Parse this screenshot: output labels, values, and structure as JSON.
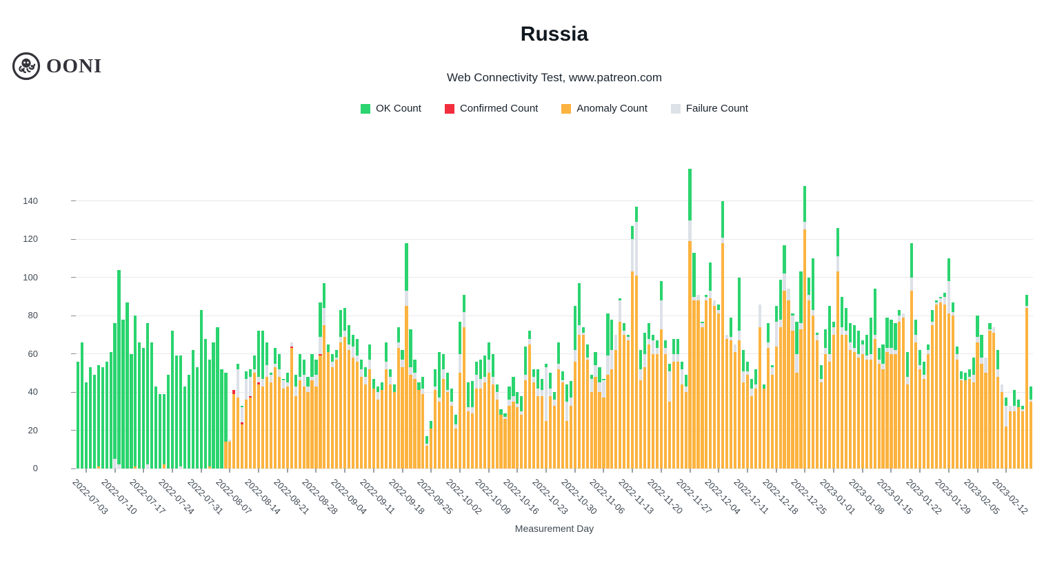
{
  "brand": {
    "logo_text": "OONI"
  },
  "chart": {
    "title": "Russia",
    "subtitle": "Web Connectivity Test, www.patreon.com",
    "xlabel": "Measurement Day"
  },
  "legend": {
    "items": [
      {
        "label": "OK Count",
        "color": "#2ad46e"
      },
      {
        "label": "Confirmed Count",
        "color": "#f22e3e"
      },
      {
        "label": "Anomaly Count",
        "color": "#fcb33f"
      },
      {
        "label": "Failure Count",
        "color": "#dde1e8"
      }
    ]
  },
  "chart_data": {
    "type": "bar",
    "stacked": true,
    "title": "Russia",
    "subtitle": "Web Connectivity Test, www.patreon.com",
    "xlabel": "Measurement Day",
    "ylabel": "",
    "ylim": [
      0,
      158
    ],
    "grid": true,
    "legend_position": "top-center",
    "start_date": "2022-07-01",
    "y_ticks": [
      0,
      20,
      40,
      60,
      80,
      100,
      120,
      140
    ],
    "x_tick_labels": [
      "2022-07-03",
      "2022-07-10",
      "2022-07-17",
      "2022-07-24",
      "2022-07-31",
      "2022-08-07",
      "2022-08-14",
      "2022-08-21",
      "2022-08-28",
      "2022-09-04",
      "2022-09-11",
      "2022-09-18",
      "2022-09-25",
      "2022-10-02",
      "2022-10-09",
      "2022-10-16",
      "2022-10-23",
      "2022-10-30",
      "2022-11-06",
      "2022-11-13",
      "2022-11-20",
      "2022-11-27",
      "2022-12-04",
      "2022-12-11",
      "2022-12-18",
      "2022-12-25",
      "2023-01-01",
      "2023-01-08",
      "2023-01-15",
      "2023-01-22",
      "2023-01-29",
      "2023-02-05",
      "2023-02-12"
    ],
    "x_tick_first_index": 2,
    "x_tick_step": 7,
    "series": [
      {
        "name": "OK Count",
        "color": "#2ad46e",
        "values": [
          56,
          66,
          45,
          53,
          49,
          53,
          53,
          56,
          61,
          71,
          102,
          78,
          87,
          60,
          79,
          66,
          63,
          74,
          66,
          43,
          39,
          37,
          49,
          72,
          59,
          58,
          43,
          49,
          62,
          53,
          83,
          68,
          56,
          66,
          74,
          52,
          36,
          0,
          0,
          3,
          1,
          4,
          4,
          7,
          24,
          25,
          12,
          1,
          8,
          8,
          1,
          5,
          0,
          6,
          12,
          8,
          5,
          12,
          8,
          18,
          13,
          4,
          4,
          4,
          14,
          12,
          10,
          6,
          9,
          5,
          5,
          8,
          5,
          3,
          4,
          10,
          4,
          4,
          8,
          5,
          25,
          20,
          7,
          4,
          6,
          4,
          4,
          9,
          24,
          8,
          9,
          7,
          5,
          17,
          9,
          13,
          14,
          7,
          10,
          11,
          9,
          12,
          4,
          3,
          2,
          7,
          10,
          6,
          8,
          15,
          4,
          4,
          10,
          6,
          2,
          8,
          4,
          11,
          5,
          9,
          9,
          23,
          22,
          3,
          7,
          2,
          7,
          8,
          1,
          22,
          16,
          0,
          1,
          4,
          1,
          7,
          8,
          10,
          11,
          8,
          3,
          4,
          10,
          4,
          4,
          8,
          8,
          4,
          6,
          27,
          23,
          0,
          1,
          1,
          15,
          0,
          3,
          19,
          0,
          10,
          0,
          28,
          11,
          5,
          5,
          8,
          0,
          2,
          10,
          1,
          8,
          21,
          15,
          0,
          1,
          17,
          27,
          19,
          9,
          27,
          1,
          7,
          10,
          25,
          3,
          15,
          16,
          12,
          10,
          12,
          12,
          2,
          11,
          19,
          24,
          6,
          10,
          16,
          15,
          14,
          3,
          0,
          13,
          18,
          8,
          8,
          7,
          3,
          6,
          1,
          1,
          2,
          12,
          5,
          4,
          4,
          4,
          4,
          9,
          11,
          12,
          0,
          3,
          0,
          10,
          0,
          4,
          0,
          8,
          4,
          2,
          6,
          7
        ]
      },
      {
        "name": "Confirmed Count",
        "color": "#f22e3e",
        "values": [
          0,
          0,
          0,
          0,
          0,
          0,
          0,
          0,
          0,
          0,
          0,
          0,
          0,
          0,
          0,
          0,
          0,
          0,
          0,
          0,
          0,
          0,
          0,
          0,
          0,
          0,
          0,
          0,
          0,
          0,
          0,
          0,
          0,
          0,
          0,
          0,
          0,
          0,
          2,
          0,
          1,
          0,
          1,
          0,
          1,
          0,
          0,
          0,
          0,
          0,
          0,
          0,
          1,
          0,
          0,
          0,
          0,
          0,
          0,
          1,
          0,
          0,
          0,
          0,
          0,
          0,
          0,
          0,
          0,
          0,
          0,
          0,
          0,
          0,
          0,
          0,
          0,
          0,
          0,
          0,
          0,
          0,
          0,
          0,
          0,
          0,
          0,
          0,
          0,
          0,
          0,
          0,
          0,
          0,
          0,
          0,
          0,
          0,
          0,
          0,
          0,
          0,
          0,
          0,
          0,
          0,
          0,
          0,
          0,
          0,
          0,
          0,
          0,
          0,
          0,
          0,
          0,
          0,
          0,
          0,
          0,
          0,
          0,
          0,
          0,
          0,
          0,
          0,
          0,
          0,
          0,
          0,
          0,
          0,
          0,
          0,
          0,
          0,
          0,
          0,
          0,
          0,
          0,
          0,
          0,
          0,
          0,
          0,
          0,
          0,
          0,
          0,
          0,
          0,
          0,
          0,
          0,
          0,
          0,
          0,
          0,
          0,
          0,
          0,
          0,
          0,
          0,
          0,
          0,
          0,
          0,
          0,
          0,
          0,
          0,
          0,
          0,
          0,
          0,
          0,
          0,
          0,
          0,
          0,
          0,
          0,
          0,
          0,
          0,
          0,
          0,
          0,
          0,
          0,
          0,
          0,
          0,
          0,
          0,
          0,
          0,
          0,
          0,
          0,
          0,
          0,
          0,
          0,
          0,
          0,
          0,
          0,
          0,
          0,
          0,
          0,
          0,
          0,
          0,
          0,
          0,
          0,
          0,
          0,
          0,
          0,
          0,
          0,
          0,
          0,
          0,
          0,
          0
        ]
      },
      {
        "name": "Anomaly Count",
        "color": "#fcb33f",
        "values": [
          0,
          0,
          0,
          0,
          0,
          1,
          0,
          0,
          0,
          0,
          0,
          0,
          0,
          0,
          1,
          0,
          0,
          0,
          0,
          0,
          0,
          2,
          0,
          0,
          0,
          0,
          0,
          0,
          0,
          0,
          0,
          0,
          1,
          0,
          0,
          0,
          14,
          14,
          39,
          37,
          23,
          36,
          37,
          50,
          44,
          43,
          48,
          45,
          53,
          48,
          42,
          43,
          63,
          38,
          46,
          43,
          40,
          46,
          43,
          59,
          75,
          61,
          53,
          57,
          66,
          69,
          62,
          58,
          56,
          48,
          44,
          52,
          42,
          36,
          41,
          52,
          44,
          40,
          63,
          53,
          85,
          49,
          47,
          41,
          39,
          12,
          21,
          41,
          35,
          47,
          40,
          33,
          21,
          50,
          74,
          30,
          29,
          42,
          42,
          45,
          50,
          44,
          36,
          28,
          26,
          33,
          35,
          32,
          28,
          46,
          65,
          45,
          38,
          38,
          25,
          38,
          33,
          52,
          45,
          25,
          33,
          56,
          70,
          70,
          57,
          40,
          48,
          40,
          37,
          49,
          52,
          62,
          77,
          70,
          67,
          103,
          101,
          46,
          53,
          65,
          60,
          60,
          73,
          60,
          35,
          56,
          56,
          44,
          40,
          119,
          88,
          88,
          74,
          88,
          89,
          85,
          81,
          118,
          68,
          67,
          61,
          67,
          45,
          49,
          38,
          42,
          74,
          42,
          63,
          49,
          64,
          74,
          93,
          88,
          72,
          50,
          73,
          125,
          88,
          80,
          67,
          45,
          60,
          56,
          70,
          103,
          70,
          70,
          62,
          61,
          58,
          60,
          57,
          57,
          68,
          55,
          52,
          61,
          60,
          60,
          77,
          79,
          44,
          93,
          66,
          52,
          47,
          60,
          75,
          86,
          87,
          86,
          81,
          80,
          57,
          46,
          46,
          47,
          45,
          66,
          55,
          50,
          72,
          71,
          48,
          40,
          22,
          30,
          30,
          32,
          30,
          84,
          35
        ]
      },
      {
        "name": "Failure Count",
        "color": "#dde1e8",
        "values": [
          0,
          0,
          0,
          0,
          0,
          0,
          0,
          0,
          0,
          5,
          2,
          0,
          0,
          0,
          0,
          0,
          0,
          2,
          0,
          0,
          0,
          0,
          0,
          0,
          0,
          1,
          0,
          0,
          0,
          0,
          0,
          0,
          0,
          0,
          0,
          0,
          0,
          1,
          0,
          15,
          8,
          11,
          10,
          2,
          3,
          4,
          6,
          4,
          2,
          4,
          4,
          2,
          2,
          5,
          2,
          6,
          3,
          2,
          6,
          9,
          9,
          0,
          3,
          1,
          3,
          3,
          3,
          6,
          3,
          4,
          4,
          5,
          0,
          4,
          0,
          4,
          4,
          0,
          3,
          4,
          8,
          4,
          3,
          0,
          3,
          1,
          0,
          2,
          2,
          5,
          1,
          2,
          2,
          10,
          8,
          2,
          3,
          7,
          5,
          3,
          7,
          4,
          4,
          0,
          1,
          3,
          3,
          2,
          2,
          3,
          3,
          3,
          4,
          3,
          28,
          4,
          3,
          3,
          1,
          10,
          4,
          6,
          5,
          1,
          1,
          7,
          6,
          5,
          9,
          10,
          10,
          8,
          11,
          2,
          2,
          17,
          28,
          6,
          7,
          3,
          7,
          3,
          15,
          3,
          16,
          4,
          4,
          8,
          3,
          11,
          2,
          3,
          2,
          2,
          4,
          3,
          2,
          3,
          2,
          2,
          4,
          5,
          6,
          2,
          4,
          2,
          12,
          0,
          3,
          4,
          13,
          4,
          9,
          6,
          8,
          10,
          3,
          4,
          3,
          3,
          3,
          2,
          3,
          4,
          4,
          8,
          4,
          2,
          4,
          2,
          2,
          5,
          2,
          3,
          2,
          2,
          3,
          2,
          3,
          2,
          3,
          2,
          4,
          7,
          4,
          2,
          2,
          2,
          2,
          1,
          2,
          4,
          17,
          2,
          3,
          1,
          0,
          1,
          4,
          3,
          3,
          8,
          1,
          3,
          4,
          4,
          11,
          3,
          3,
          0,
          1,
          1,
          1
        ]
      }
    ]
  }
}
